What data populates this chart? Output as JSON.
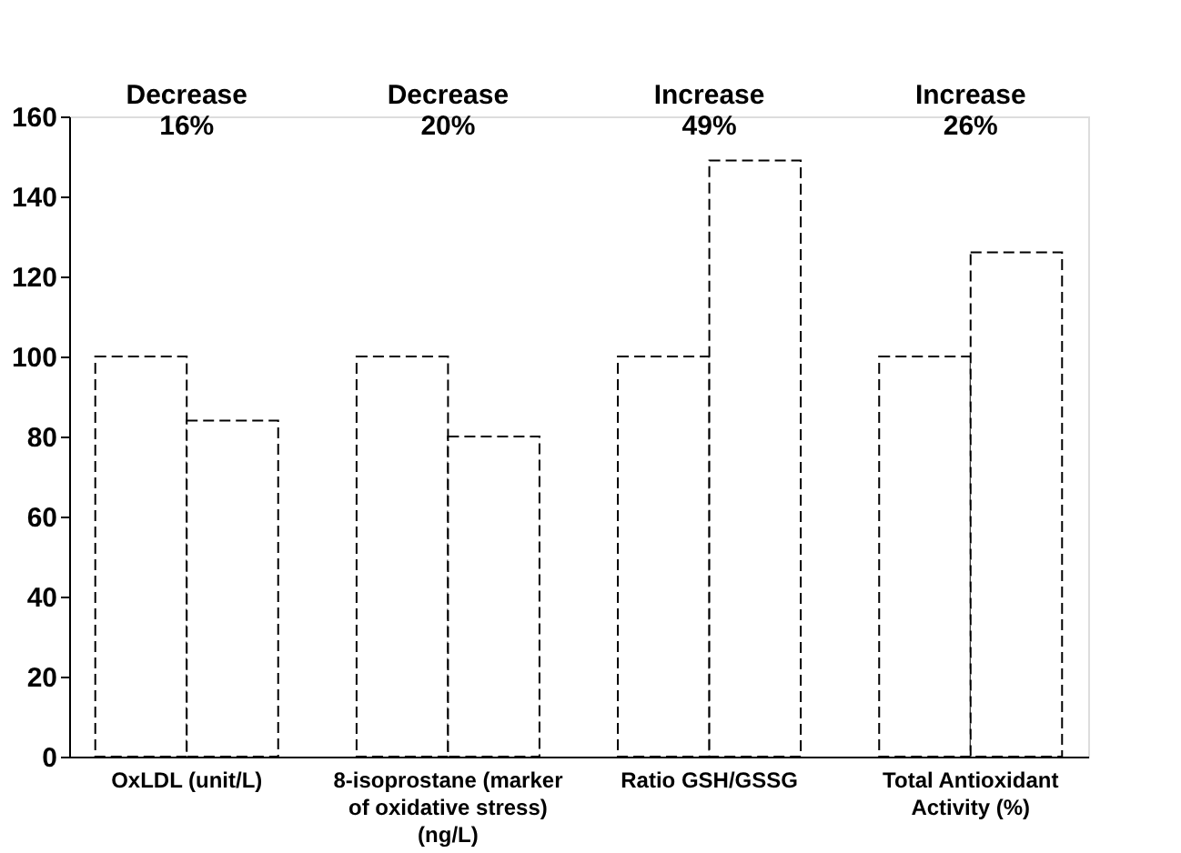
{
  "chart_data": {
    "type": "bar",
    "categories": [
      "OxLDL (unit/L)",
      "8-isoprostane (marker of oxidative stress) (ng/L)",
      "Ratio GSH/GSSG",
      "Total Antioxidant Activity (%)"
    ],
    "series": [
      {
        "color": "#ffffff",
        "values": [
          100,
          100,
          100,
          100
        ]
      },
      {
        "color": "#ffffff",
        "values": [
          84,
          80,
          149,
          126
        ]
      }
    ],
    "annotations": [
      "Decrease 16%",
      "Decrease 20%",
      "Increase 49%",
      "Increase 26%"
    ],
    "ylim": [
      0,
      160
    ],
    "yticks": [
      0,
      20,
      40,
      60,
      80,
      100,
      120,
      140,
      160
    ],
    "grid": false
  }
}
